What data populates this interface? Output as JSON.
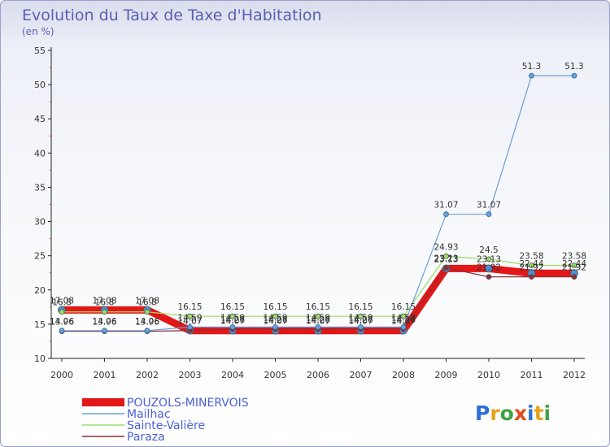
{
  "chart_data": {
    "type": "line",
    "title": "Evolution du Taux de Taxe d'Habitation",
    "subtitle": "(en %)",
    "xlabel": "",
    "ylabel": "",
    "x": [
      "2000",
      "2001",
      "2002",
      "2003",
      "2004",
      "2005",
      "2006",
      "2007",
      "2008",
      "2009",
      "2010",
      "2011",
      "2012"
    ],
    "ylim": [
      10,
      55
    ],
    "yticks": [
      "10",
      "15",
      "20",
      "25",
      "30",
      "35",
      "40",
      "45",
      "50",
      "55"
    ],
    "grid": false,
    "legend_position": "bottom-left",
    "series": [
      {
        "name": "POUZOLS-MINERVOIS",
        "color": "#e31717",
        "values": [
          17.08,
          17.08,
          17.08,
          14.07,
          14.07,
          14.07,
          14.07,
          14.07,
          14.07,
          23.13,
          23.13,
          22.44,
          22.44
        ],
        "labels": [
          "17.08",
          "17.08",
          "17.08",
          "14.07",
          "14.07",
          "14.07",
          "14.07",
          "14.07",
          "14.07",
          "23.13",
          "23.13",
          "22.44",
          "22.44"
        ]
      },
      {
        "name": "Mailhac",
        "color": "#6b9fd4",
        "values": [
          14.06,
          14.06,
          14.06,
          14.59,
          14.59,
          14.59,
          14.59,
          14.59,
          14.59,
          31.07,
          31.07,
          51.3,
          51.3
        ],
        "labels": [
          "14.06",
          "14.06",
          "14.06",
          "14.59",
          "14.59",
          "14.59",
          "14.59",
          "14.59",
          "14.59",
          "31.07",
          "31.07",
          "51.3",
          "51.3"
        ]
      },
      {
        "name": "Sainte-Valière",
        "color": "#99dd66",
        "values": [
          16.8,
          16.8,
          16.8,
          16.15,
          16.15,
          16.15,
          16.15,
          16.15,
          16.15,
          24.93,
          24.5,
          23.58,
          23.58
        ],
        "labels": [
          "16.8",
          "16.8",
          "16.8",
          "16.15",
          "16.15",
          "16.15",
          "16.15",
          "16.15",
          "16.15",
          "24.93",
          "24.5",
          "23.58",
          "23.58"
        ]
      },
      {
        "name": "Paraza",
        "color": "#8b2e3a",
        "values": [
          13.96,
          13.96,
          13.96,
          14.07,
          14.26,
          14.26,
          14.26,
          14.26,
          14.26,
          23.23,
          21.92,
          21.92,
          21.92
        ],
        "labels": [
          "13.96",
          "13.96",
          "13.96",
          "14.07",
          "14.26",
          "14.26",
          "14.26",
          "14.26",
          "14.26",
          "23.23",
          "21.92",
          "21.92",
          "21.92"
        ]
      }
    ]
  },
  "brand": {
    "name": "Proxiti",
    "letters": [
      "P",
      "r",
      "o",
      "x",
      "i",
      "t",
      "i"
    ],
    "colors": [
      "#2f6fd4",
      "#e8a21a",
      "#3fa53f",
      "#e34a1c",
      "#2f6fd4",
      "#e8a21a",
      "#3fa53f"
    ]
  }
}
